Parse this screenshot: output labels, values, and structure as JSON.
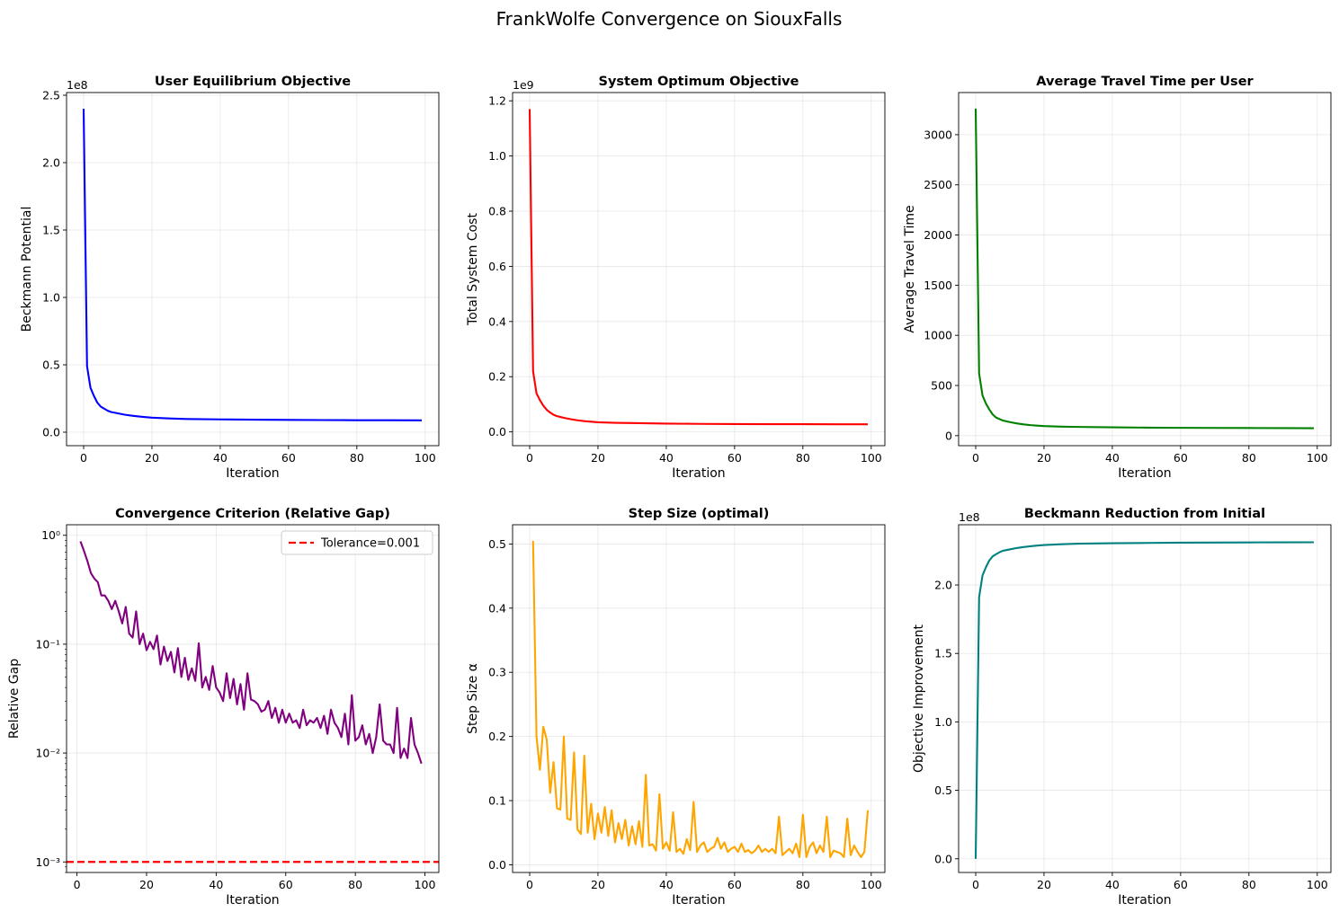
{
  "figure_title": "FrankWolfe Convergence on SiouxFalls",
  "chart_data": [
    {
      "type": "line",
      "title": "User Equilibrium Objective",
      "xlabel": "Iteration",
      "ylabel": "Beckmann Potential",
      "offset_text": "1e8",
      "grid": true,
      "xlim": [
        -5,
        104
      ],
      "ylim": [
        -0.1,
        2.52
      ],
      "xticks": [
        0,
        20,
        40,
        60,
        80,
        100
      ],
      "xtick_labels": [
        "0",
        "20",
        "40",
        "60",
        "80",
        "100"
      ],
      "yticks": [
        0.0,
        0.5,
        1.0,
        1.5,
        2.0,
        2.5
      ],
      "ytick_labels": [
        "0.0",
        "0.5",
        "1.0",
        "1.5",
        "2.0",
        "2.5"
      ],
      "color": "#0000ff",
      "x": [
        0,
        1,
        2,
        3,
        4,
        5,
        6,
        7,
        8,
        9,
        10,
        12,
        14,
        16,
        18,
        20,
        25,
        30,
        40,
        50,
        60,
        70,
        80,
        90,
        99
      ],
      "y": [
        2.4,
        0.49,
        0.33,
        0.27,
        0.22,
        0.19,
        0.175,
        0.16,
        0.15,
        0.145,
        0.14,
        0.13,
        0.123,
        0.117,
        0.112,
        0.108,
        0.102,
        0.098,
        0.095,
        0.093,
        0.091,
        0.09,
        0.089,
        0.0885,
        0.088
      ]
    },
    {
      "type": "line",
      "title": "System Optimum Objective",
      "xlabel": "Iteration",
      "ylabel": "Total System Cost",
      "offset_text": "1e9",
      "grid": true,
      "xlim": [
        -5,
        104
      ],
      "ylim": [
        -0.05,
        1.23
      ],
      "xticks": [
        0,
        20,
        40,
        60,
        80,
        100
      ],
      "xtick_labels": [
        "0",
        "20",
        "40",
        "60",
        "80",
        "100"
      ],
      "yticks": [
        0.0,
        0.2,
        0.4,
        0.6,
        0.8,
        1.0,
        1.2
      ],
      "ytick_labels": [
        "0.0",
        "0.2",
        "0.4",
        "0.6",
        "0.8",
        "1.0",
        "1.2"
      ],
      "color": "#ff0000",
      "x": [
        0,
        1,
        2,
        3,
        4,
        5,
        6,
        7,
        8,
        9,
        10,
        12,
        14,
        16,
        18,
        20,
        25,
        30,
        40,
        50,
        60,
        70,
        80,
        90,
        99
      ],
      "y": [
        1.17,
        0.22,
        0.14,
        0.115,
        0.095,
        0.08,
        0.07,
        0.062,
        0.057,
        0.054,
        0.051,
        0.046,
        0.042,
        0.039,
        0.037,
        0.035,
        0.033,
        0.032,
        0.03,
        0.029,
        0.0285,
        0.028,
        0.0278,
        0.0276,
        0.0275
      ]
    },
    {
      "type": "line",
      "title": "Average Travel Time per User",
      "xlabel": "Iteration",
      "ylabel": "Average Travel Time",
      "grid": true,
      "xlim": [
        -5,
        104
      ],
      "ylim": [
        -100,
        3420
      ],
      "xticks": [
        0,
        20,
        40,
        60,
        80,
        100
      ],
      "xtick_labels": [
        "0",
        "20",
        "40",
        "60",
        "80",
        "100"
      ],
      "yticks": [
        0,
        500,
        1000,
        1500,
        2000,
        2500,
        3000
      ],
      "ytick_labels": [
        "0",
        "500",
        "1000",
        "1500",
        "2000",
        "2500",
        "3000"
      ],
      "color": "#008000",
      "x": [
        0,
        1,
        2,
        3,
        4,
        5,
        6,
        7,
        8,
        9,
        10,
        12,
        14,
        16,
        18,
        20,
        25,
        30,
        40,
        50,
        60,
        70,
        80,
        90,
        99
      ],
      "y": [
        3260,
        620,
        400,
        320,
        260,
        210,
        180,
        165,
        150,
        143,
        135,
        122,
        112,
        105,
        100,
        95,
        90,
        87,
        83,
        80,
        78,
        77,
        76,
        75,
        74
      ]
    },
    {
      "type": "line",
      "title": "Convergence Criterion (Relative Gap)",
      "xlabel": "Iteration",
      "ylabel": "Relative Gap",
      "yscale": "log",
      "grid": true,
      "xlim": [
        -3,
        104
      ],
      "ylim": [
        0.0008,
        1.25
      ],
      "xticks": [
        0,
        20,
        40,
        60,
        80,
        100
      ],
      "xtick_labels": [
        "0",
        "20",
        "40",
        "60",
        "80",
        "100"
      ],
      "yticks": [
        0.001,
        0.01,
        0.1,
        1
      ],
      "ytick_labels": [
        "10⁻³",
        "10⁻²",
        "10⁻¹",
        "10⁰"
      ],
      "color": "#800080",
      "legend_position": "upper right",
      "reference_line": {
        "label": "Tolerance=0.001",
        "y": 0.001,
        "color": "#ff0000",
        "style": "dashed"
      },
      "x": [
        1,
        2,
        3,
        4,
        5,
        6,
        7,
        8,
        9,
        10,
        11,
        12,
        13,
        14,
        15,
        16,
        17,
        18,
        19,
        20,
        21,
        22,
        23,
        24,
        25,
        26,
        27,
        28,
        29,
        30,
        31,
        32,
        33,
        34,
        35,
        36,
        37,
        38,
        39,
        40,
        41,
        42,
        43,
        44,
        45,
        46,
        47,
        48,
        49,
        50,
        51,
        52,
        53,
        54,
        55,
        56,
        57,
        58,
        59,
        60,
        61,
        62,
        63,
        64,
        65,
        66,
        67,
        68,
        69,
        70,
        71,
        72,
        73,
        74,
        75,
        76,
        77,
        78,
        79,
        80,
        81,
        82,
        83,
        84,
        85,
        86,
        87,
        88,
        89,
        90,
        91,
        92,
        93,
        94,
        95,
        96,
        97,
        98,
        99
      ],
      "y": [
        0.88,
        0.72,
        0.58,
        0.45,
        0.4,
        0.37,
        0.28,
        0.28,
        0.25,
        0.21,
        0.25,
        0.2,
        0.155,
        0.22,
        0.125,
        0.115,
        0.2,
        0.1,
        0.125,
        0.088,
        0.105,
        0.09,
        0.12,
        0.065,
        0.095,
        0.07,
        0.085,
        0.055,
        0.092,
        0.05,
        0.075,
        0.047,
        0.06,
        0.046,
        0.102,
        0.04,
        0.05,
        0.038,
        0.063,
        0.04,
        0.036,
        0.03,
        0.054,
        0.032,
        0.048,
        0.028,
        0.043,
        0.025,
        0.054,
        0.031,
        0.03,
        0.028,
        0.024,
        0.025,
        0.03,
        0.021,
        0.026,
        0.019,
        0.025,
        0.019,
        0.023,
        0.019,
        0.02,
        0.017,
        0.025,
        0.018,
        0.02,
        0.019,
        0.021,
        0.017,
        0.022,
        0.015,
        0.025,
        0.019,
        0.017,
        0.014,
        0.023,
        0.012,
        0.034,
        0.013,
        0.014,
        0.018,
        0.012,
        0.015,
        0.01,
        0.014,
        0.028,
        0.013,
        0.012,
        0.012,
        0.01,
        0.026,
        0.009,
        0.011,
        0.009,
        0.021,
        0.012,
        0.01,
        0.008
      ]
    },
    {
      "type": "line",
      "title": "Step Size (optimal)",
      "xlabel": "Iteration",
      "ylabel": "Step Size α",
      "grid": true,
      "xlim": [
        -5,
        104
      ],
      "ylim": [
        -0.012,
        0.53
      ],
      "xticks": [
        0,
        20,
        40,
        60,
        80,
        100
      ],
      "xtick_labels": [
        "0",
        "20",
        "40",
        "60",
        "80",
        "100"
      ],
      "yticks": [
        0.0,
        0.1,
        0.2,
        0.3,
        0.4,
        0.5
      ],
      "ytick_labels": [
        "0.0",
        "0.1",
        "0.2",
        "0.3",
        "0.4",
        "0.5"
      ],
      "color": "#ffa500",
      "x": [
        1,
        2,
        3,
        4,
        5,
        6,
        7,
        8,
        9,
        10,
        11,
        12,
        13,
        14,
        15,
        16,
        17,
        18,
        19,
        20,
        21,
        22,
        23,
        24,
        25,
        26,
        27,
        28,
        29,
        30,
        31,
        32,
        33,
        34,
        35,
        36,
        37,
        38,
        39,
        40,
        41,
        42,
        43,
        44,
        45,
        46,
        47,
        48,
        49,
        50,
        51,
        52,
        53,
        54,
        55,
        56,
        57,
        58,
        59,
        60,
        61,
        62,
        63,
        64,
        65,
        66,
        67,
        68,
        69,
        70,
        71,
        72,
        73,
        74,
        75,
        76,
        77,
        78,
        79,
        80,
        81,
        82,
        83,
        84,
        85,
        86,
        87,
        88,
        89,
        90,
        91,
        92,
        93,
        94,
        95,
        96,
        97,
        98,
        99
      ],
      "y": [
        0.505,
        0.2,
        0.148,
        0.215,
        0.195,
        0.112,
        0.16,
        0.088,
        0.086,
        0.2,
        0.072,
        0.07,
        0.175,
        0.055,
        0.048,
        0.17,
        0.05,
        0.095,
        0.04,
        0.08,
        0.05,
        0.09,
        0.045,
        0.085,
        0.035,
        0.065,
        0.04,
        0.07,
        0.03,
        0.06,
        0.032,
        0.068,
        0.028,
        0.14,
        0.03,
        0.032,
        0.022,
        0.11,
        0.025,
        0.035,
        0.022,
        0.082,
        0.02,
        0.025,
        0.017,
        0.04,
        0.023,
        0.098,
        0.02,
        0.03,
        0.035,
        0.02,
        0.025,
        0.028,
        0.042,
        0.025,
        0.035,
        0.02,
        0.025,
        0.028,
        0.02,
        0.033,
        0.02,
        0.023,
        0.018,
        0.022,
        0.03,
        0.02,
        0.025,
        0.02,
        0.025,
        0.018,
        0.075,
        0.015,
        0.02,
        0.025,
        0.018,
        0.033,
        0.012,
        0.078,
        0.012,
        0.028,
        0.035,
        0.018,
        0.03,
        0.02,
        0.075,
        0.012,
        0.022,
        0.02,
        0.018,
        0.012,
        0.072,
        0.015,
        0.03,
        0.02,
        0.012,
        0.02,
        0.085
      ]
    },
    {
      "type": "line",
      "title": "Beckmann Reduction from Initial",
      "xlabel": "Iteration",
      "ylabel": "Objective Improvement",
      "offset_text": "1e8",
      "grid": true,
      "xlim": [
        -5,
        104
      ],
      "ylim": [
        -0.1,
        2.44
      ],
      "xticks": [
        0,
        20,
        40,
        60,
        80,
        100
      ],
      "xtick_labels": [
        "0",
        "20",
        "40",
        "60",
        "80",
        "100"
      ],
      "yticks": [
        0.0,
        0.5,
        1.0,
        1.5,
        2.0
      ],
      "ytick_labels": [
        "0.0",
        "0.5",
        "1.0",
        "1.5",
        "2.0"
      ],
      "color": "#008080",
      "x": [
        0,
        1,
        2,
        3,
        4,
        5,
        6,
        7,
        8,
        9,
        10,
        12,
        14,
        16,
        18,
        20,
        25,
        30,
        40,
        50,
        60,
        70,
        80,
        90,
        99
      ],
      "y": [
        0.0,
        1.91,
        2.07,
        2.13,
        2.18,
        2.21,
        2.225,
        2.24,
        2.25,
        2.255,
        2.26,
        2.27,
        2.277,
        2.283,
        2.288,
        2.292,
        2.298,
        2.302,
        2.305,
        2.307,
        2.309,
        2.31,
        2.311,
        2.3115,
        2.312
      ]
    }
  ]
}
